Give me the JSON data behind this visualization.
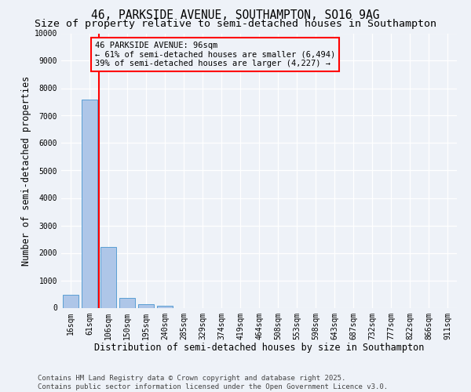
{
  "title": "46, PARKSIDE AVENUE, SOUTHAMPTON, SO16 9AG",
  "subtitle": "Size of property relative to semi-detached houses in Southampton",
  "xlabel": "Distribution of semi-detached houses by size in Southampton",
  "ylabel": "Number of semi-detached properties",
  "categories": [
    "16sqm",
    "61sqm",
    "106sqm",
    "150sqm",
    "195sqm",
    "240sqm",
    "285sqm",
    "329sqm",
    "374sqm",
    "419sqm",
    "464sqm",
    "508sqm",
    "553sqm",
    "598sqm",
    "643sqm",
    "687sqm",
    "732sqm",
    "777sqm",
    "822sqm",
    "866sqm",
    "911sqm"
  ],
  "bar_heights": [
    480,
    7580,
    2220,
    370,
    120,
    70,
    0,
    0,
    0,
    0,
    0,
    0,
    0,
    0,
    0,
    0,
    0,
    0,
    0,
    0,
    0
  ],
  "bar_color": "#aec6e8",
  "bar_edge_color": "#5a9fd4",
  "red_line_x": 1.5,
  "annotation_title": "46 PARKSIDE AVENUE: 96sqm",
  "annotation_line1": "← 61% of semi-detached houses are smaller (6,494)",
  "annotation_line2": "39% of semi-detached houses are larger (4,227) →",
  "ylim": [
    0,
    10000
  ],
  "yticks": [
    0,
    1000,
    2000,
    3000,
    4000,
    5000,
    6000,
    7000,
    8000,
    9000,
    10000
  ],
  "footer_line1": "Contains HM Land Registry data © Crown copyright and database right 2025.",
  "footer_line2": "Contains public sector information licensed under the Open Government Licence v3.0.",
  "background_color": "#eef2f8",
  "grid_color": "#ffffff",
  "title_fontsize": 10.5,
  "subtitle_fontsize": 9.5,
  "axis_label_fontsize": 8.5,
  "tick_fontsize": 7,
  "annotation_fontsize": 7.5,
  "footer_fontsize": 6.5
}
